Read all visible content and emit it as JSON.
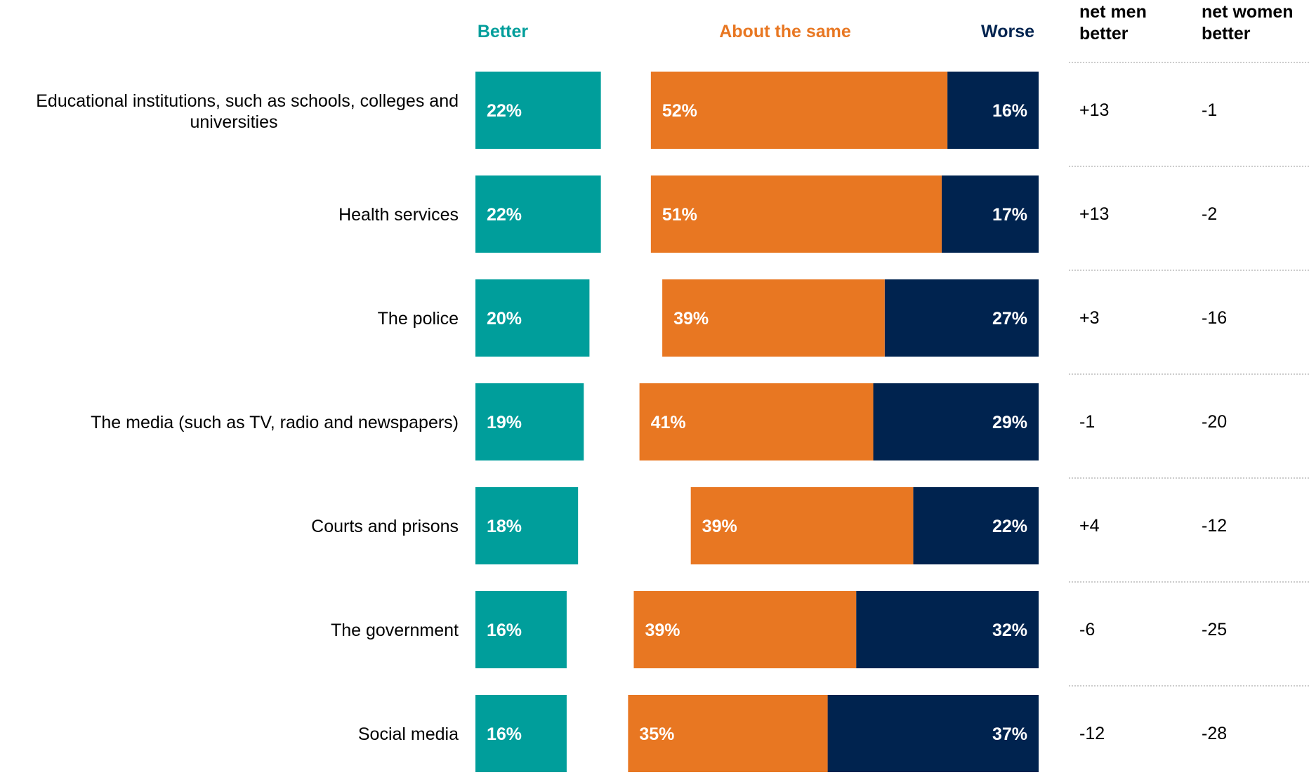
{
  "chart_data": {
    "type": "bar",
    "stacked": "diverging",
    "headers": {
      "better": "Better",
      "same": "About the same",
      "worse": "Worse",
      "net_men": [
        "net men",
        "better"
      ],
      "net_women": [
        "net women",
        "better"
      ]
    },
    "colors": {
      "better": "#009E9B",
      "same": "#E87722",
      "worse": "#00234F",
      "divider": "#999999"
    },
    "categories": [
      [
        "Educational institutions, such as schools, colleges and",
        "universities"
      ],
      [
        "Health services"
      ],
      [
        "The police"
      ],
      [
        "The media (such as TV, radio and newspapers)"
      ],
      [
        "Courts and prisons"
      ],
      [
        "The government"
      ],
      [
        "Social media"
      ]
    ],
    "series": [
      {
        "name": "Better",
        "values": [
          22,
          22,
          20,
          19,
          18,
          16,
          16
        ]
      },
      {
        "name": "About the same",
        "values": [
          52,
          51,
          39,
          41,
          39,
          39,
          35
        ]
      },
      {
        "name": "Worse",
        "values": [
          16,
          17,
          27,
          29,
          22,
          32,
          37
        ]
      }
    ],
    "value_labels": {
      "better": [
        "22%",
        "22%",
        "20%",
        "19%",
        "18%",
        "16%",
        "16%"
      ],
      "same": [
        "52%",
        "51%",
        "39%",
        "41%",
        "39%",
        "39%",
        "35%"
      ],
      "worse": [
        "16%",
        "17%",
        "27%",
        "29%",
        "22%",
        "32%",
        "37%"
      ]
    },
    "net_men_better": [
      "+13",
      "+13",
      "+3",
      "-1",
      "+4",
      "-6",
      "-12"
    ],
    "net_women_better": [
      "-1",
      "-2",
      "-16",
      "-20",
      "-12",
      "-25",
      "-28"
    ],
    "unit": "%"
  }
}
